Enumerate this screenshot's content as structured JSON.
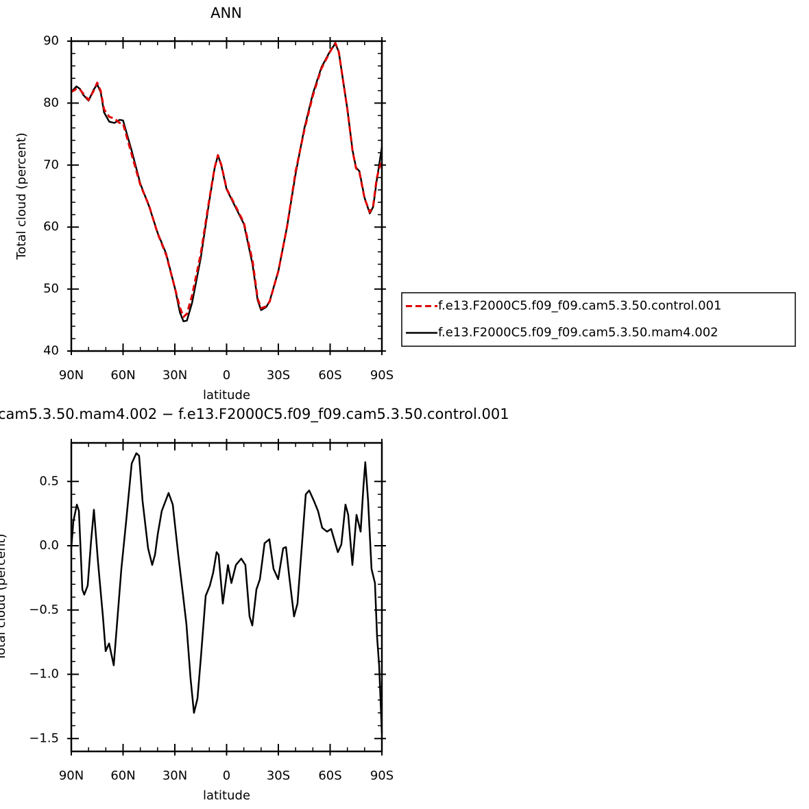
{
  "chart_data": [
    {
      "type": "line",
      "title": "ANN",
      "xlabel": "latitude",
      "ylabel": "Total cloud (percent)",
      "x": [
        90,
        87,
        85,
        83,
        80,
        77,
        75,
        73,
        71,
        68,
        65,
        62,
        60,
        55,
        50,
        45,
        40,
        35,
        30,
        27,
        25,
        23,
        20,
        15,
        10,
        7,
        5,
        3,
        0,
        -5,
        -10,
        -15,
        -18,
        -20,
        -23,
        -25,
        -30,
        -35,
        -40,
        -45,
        -50,
        -55,
        -60,
        -63,
        -65,
        -70,
        -73,
        -75,
        -77,
        -80,
        -83,
        -85,
        -87,
        -90
      ],
      "series": [
        {
          "name": "f.e13.F2000C5.f09_f09.cam5.3.50.control.001",
          "color": "#e00000",
          "style": "dashed",
          "values": [
            81.8,
            82.3,
            82.2,
            81.5,
            80.5,
            82,
            83.3,
            82,
            79,
            77.8,
            77.5,
            76.8,
            76.7,
            71.7,
            66.8,
            63.5,
            59,
            55.5,
            50.2,
            47,
            45.5,
            46,
            49,
            55.7,
            64.5,
            69.5,
            71.6,
            70,
            66.2,
            63.5,
            60.7,
            54.6,
            48.5,
            46.9,
            47.2,
            48,
            52.9,
            60,
            69,
            75.6,
            81.2,
            85.6,
            88.3,
            89.7,
            88.3,
            79,
            72.3,
            69.5,
            68.8,
            64.6,
            62.4,
            63.5,
            67.9,
            71
          ]
        },
        {
          "name": "f.e13.F2000C5.f09_f09.cam5.3.50.mam4.002",
          "color": "#000000",
          "style": "solid",
          "values": [
            81.8,
            82.7,
            82.3,
            81.3,
            80.4,
            82.2,
            83,
            81.8,
            78.5,
            77,
            76.8,
            77.3,
            77.2,
            72.3,
            67,
            63.4,
            59.1,
            55.7,
            50.2,
            46.2,
            44.8,
            44.9,
            47.8,
            55,
            64.2,
            69.4,
            71.6,
            69.9,
            66.1,
            63.3,
            60.5,
            54,
            48.2,
            46.6,
            47.1,
            48.1,
            52.9,
            60,
            68.6,
            75.9,
            81.5,
            85.8,
            88.4,
            89.6,
            88.3,
            79,
            72.4,
            69.6,
            69,
            64.7,
            62.2,
            63.3,
            67.5,
            72.9
          ]
        }
      ],
      "xlim": [
        90,
        -90
      ],
      "xticks": [
        {
          "value": 90,
          "label": "90N"
        },
        {
          "value": 60,
          "label": "60N"
        },
        {
          "value": 30,
          "label": "30N"
        },
        0,
        {
          "value": -30,
          "label": "30S"
        },
        {
          "value": -60,
          "label": "60S"
        },
        {
          "value": -90,
          "label": "90S"
        }
      ],
      "ylim": [
        40,
        90
      ],
      "yticks": [
        40,
        50,
        60,
        70,
        80,
        90
      ],
      "legend": "right"
    },
    {
      "type": "line",
      "title": "cam5.3.50.mam4.002 − f.e13.F2000C5.f09_f09.cam5.3.50.control.001",
      "xlabel": "latitude",
      "ylabel": "Total cloud (percent)",
      "x": [
        90,
        88.8,
        86.8,
        85.6,
        83.6,
        82.5,
        80.5,
        78.5,
        76.9,
        74.5,
        71.7,
        70.1,
        68.1,
        65.4,
        63.8,
        61,
        58.2,
        55,
        52.3,
        50.7,
        48.7,
        45.5,
        43.1,
        41.5,
        39.9,
        37.6,
        33.6,
        31.2,
        28,
        25.2,
        23.3,
        20.9,
        18.9,
        16.9,
        14.9,
        12.1,
        9.7,
        7.8,
        5.8,
        4.6,
        2.2,
        -0.8,
        -2.8,
        -5.4,
        -8.5,
        -10.9,
        -13.3,
        -14.9,
        -17.3,
        -19.3,
        -22,
        -24.8,
        -27.2,
        -29.9,
        -32.8,
        -34.4,
        -36.3,
        -39.1,
        -41.1,
        -43.5,
        -45.9,
        -47.9,
        -50.6,
        -53,
        -55.4,
        -58.2,
        -60.6,
        -64.5,
        -66.5,
        -68.9,
        -70.5,
        -72.9,
        -75.3,
        -77.7,
        -79.3,
        -80.4,
        -82,
        -84,
        -86,
        -87.2,
        -88.4,
        -90
      ],
      "values": [
        -0.02,
        0.19,
        0.32,
        0.27,
        -0.34,
        -0.38,
        -0.31,
        0.04,
        0.28,
        -0.13,
        -0.55,
        -0.82,
        -0.76,
        -0.93,
        -0.66,
        -0.18,
        0.19,
        0.64,
        0.72,
        0.7,
        0.35,
        -0.02,
        -0.15,
        -0.07,
        0.09,
        0.27,
        0.41,
        0.32,
        -0.07,
        -0.39,
        -0.61,
        -1.03,
        -1.3,
        -1.19,
        -0.87,
        -0.39,
        -0.31,
        -0.21,
        -0.05,
        -0.07,
        -0.45,
        -0.15,
        -0.29,
        -0.15,
        -0.1,
        -0.15,
        -0.55,
        -0.62,
        -0.34,
        -0.26,
        0.02,
        0.05,
        -0.18,
        -0.26,
        -0.02,
        -0.01,
        -0.24,
        -0.55,
        -0.45,
        -0.02,
        0.4,
        0.43,
        0.35,
        0.27,
        0.14,
        0.11,
        0.13,
        -0.05,
        0.01,
        0.32,
        0.24,
        -0.15,
        0.24,
        0.11,
        0.46,
        0.65,
        0.35,
        -0.18,
        -0.29,
        -0.71,
        -0.93,
        -1.46
      ],
      "color": "#000000",
      "xlim": [
        90,
        -90
      ],
      "xticks": [
        {
          "value": 90,
          "label": "90N"
        },
        {
          "value": 60,
          "label": "60N"
        },
        {
          "value": 30,
          "label": "30N"
        },
        0,
        {
          "value": -30,
          "label": "30S"
        },
        {
          "value": -60,
          "label": "60S"
        },
        {
          "value": -90,
          "label": "90S"
        }
      ],
      "ylim": [
        -1.6,
        0.8
      ],
      "yticks": [
        {
          "value": -1.5,
          "label": "−1.5"
        },
        {
          "value": -1.0,
          "label": "−1.0"
        },
        {
          "value": -0.5,
          "label": "−0.5"
        },
        {
          "value": 0,
          "label": "0.0"
        },
        0.5
      ]
    }
  ]
}
